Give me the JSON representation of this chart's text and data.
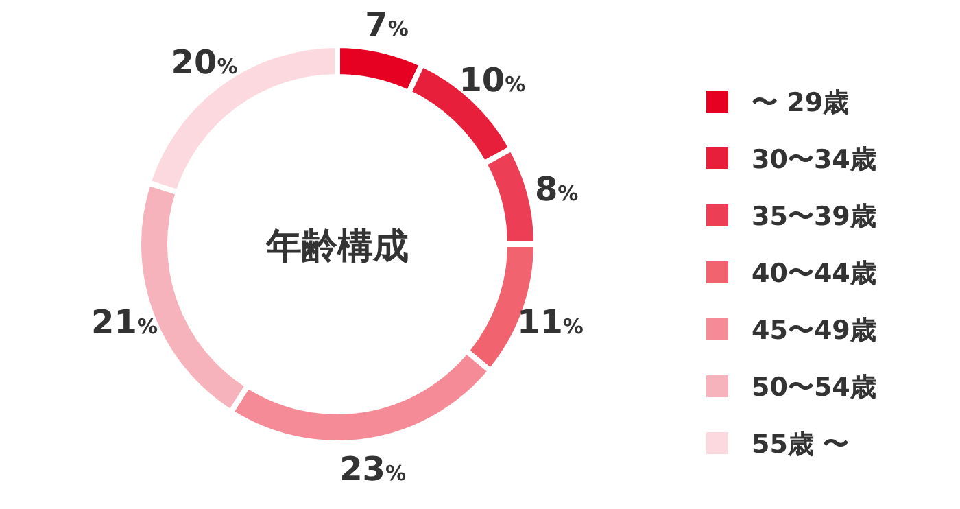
{
  "chart_data": {
    "type": "donut",
    "title": "年齢構成",
    "categories": [
      "〜 29歳",
      "30〜34歳",
      "35〜39歳",
      "40〜44歳",
      "45〜49歳",
      "50〜54歳",
      "55歳 〜"
    ],
    "values": [
      7,
      10,
      8,
      11,
      23,
      21,
      20
    ],
    "value_labels": [
      "7%",
      "10%",
      "8%",
      "11%",
      "23%",
      "21%",
      "20%"
    ],
    "colors": [
      "#e60021",
      "#e81f3a",
      "#ec3e54",
      "#f0636f",
      "#f48b96",
      "#f7b3bb",
      "#fbd9de"
    ],
    "legend": "right"
  }
}
